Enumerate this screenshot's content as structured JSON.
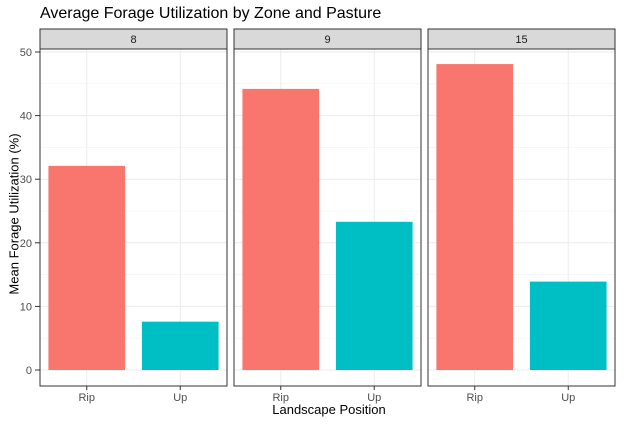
{
  "chart_data": {
    "type": "bar",
    "title": "Average Forage Utilization by Zone and Pasture",
    "xlabel": "Landscape Position",
    "ylabel": "Mean Forage Utilization (%)",
    "facets": [
      "8",
      "9",
      "15"
    ],
    "categories": [
      "Rip",
      "Up"
    ],
    "colors": {
      "Rip": "#F8766D",
      "Up": "#00BFC4"
    },
    "values": {
      "8": [
        32.1,
        7.6
      ],
      "9": [
        44.2,
        23.3
      ],
      "15": [
        48.1,
        13.9
      ]
    },
    "ylim": [
      0,
      50
    ],
    "yticks": [
      0,
      10,
      20,
      30,
      40,
      50
    ],
    "grid": true,
    "legend": "none"
  }
}
